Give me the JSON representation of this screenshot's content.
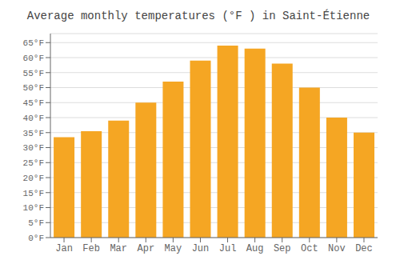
{
  "chart_data": {
    "type": "bar",
    "title": "Average monthly temperatures (°F ) in Saint-Étienne",
    "categories": [
      "Jan",
      "Feb",
      "Mar",
      "Apr",
      "May",
      "Jun",
      "Jul",
      "Aug",
      "Sep",
      "Oct",
      "Nov",
      "Dec"
    ],
    "values": [
      33.5,
      35.5,
      39,
      45,
      52,
      59,
      64,
      63,
      58,
      50,
      40,
      35
    ],
    "color": "#F5A623",
    "ylim": [
      0,
      68
    ],
    "yticks": [
      {
        "value": 0,
        "label": "0°F"
      },
      {
        "value": 5,
        "label": "5°F"
      },
      {
        "value": 10,
        "label": "10°F"
      },
      {
        "value": 15,
        "label": "15°F"
      },
      {
        "value": 20,
        "label": "20°F"
      },
      {
        "value": 25,
        "label": "25°F"
      },
      {
        "value": 30,
        "label": "30°F"
      },
      {
        "value": 35,
        "label": "35°F"
      },
      {
        "value": 40,
        "label": "40°F"
      },
      {
        "value": 45,
        "label": "45°F"
      },
      {
        "value": 50,
        "label": "50°F"
      },
      {
        "value": 55,
        "label": "55°F"
      },
      {
        "value": 60,
        "label": "60°F"
      },
      {
        "value": 65,
        "label": "65°F"
      }
    ],
    "grid": true
  }
}
